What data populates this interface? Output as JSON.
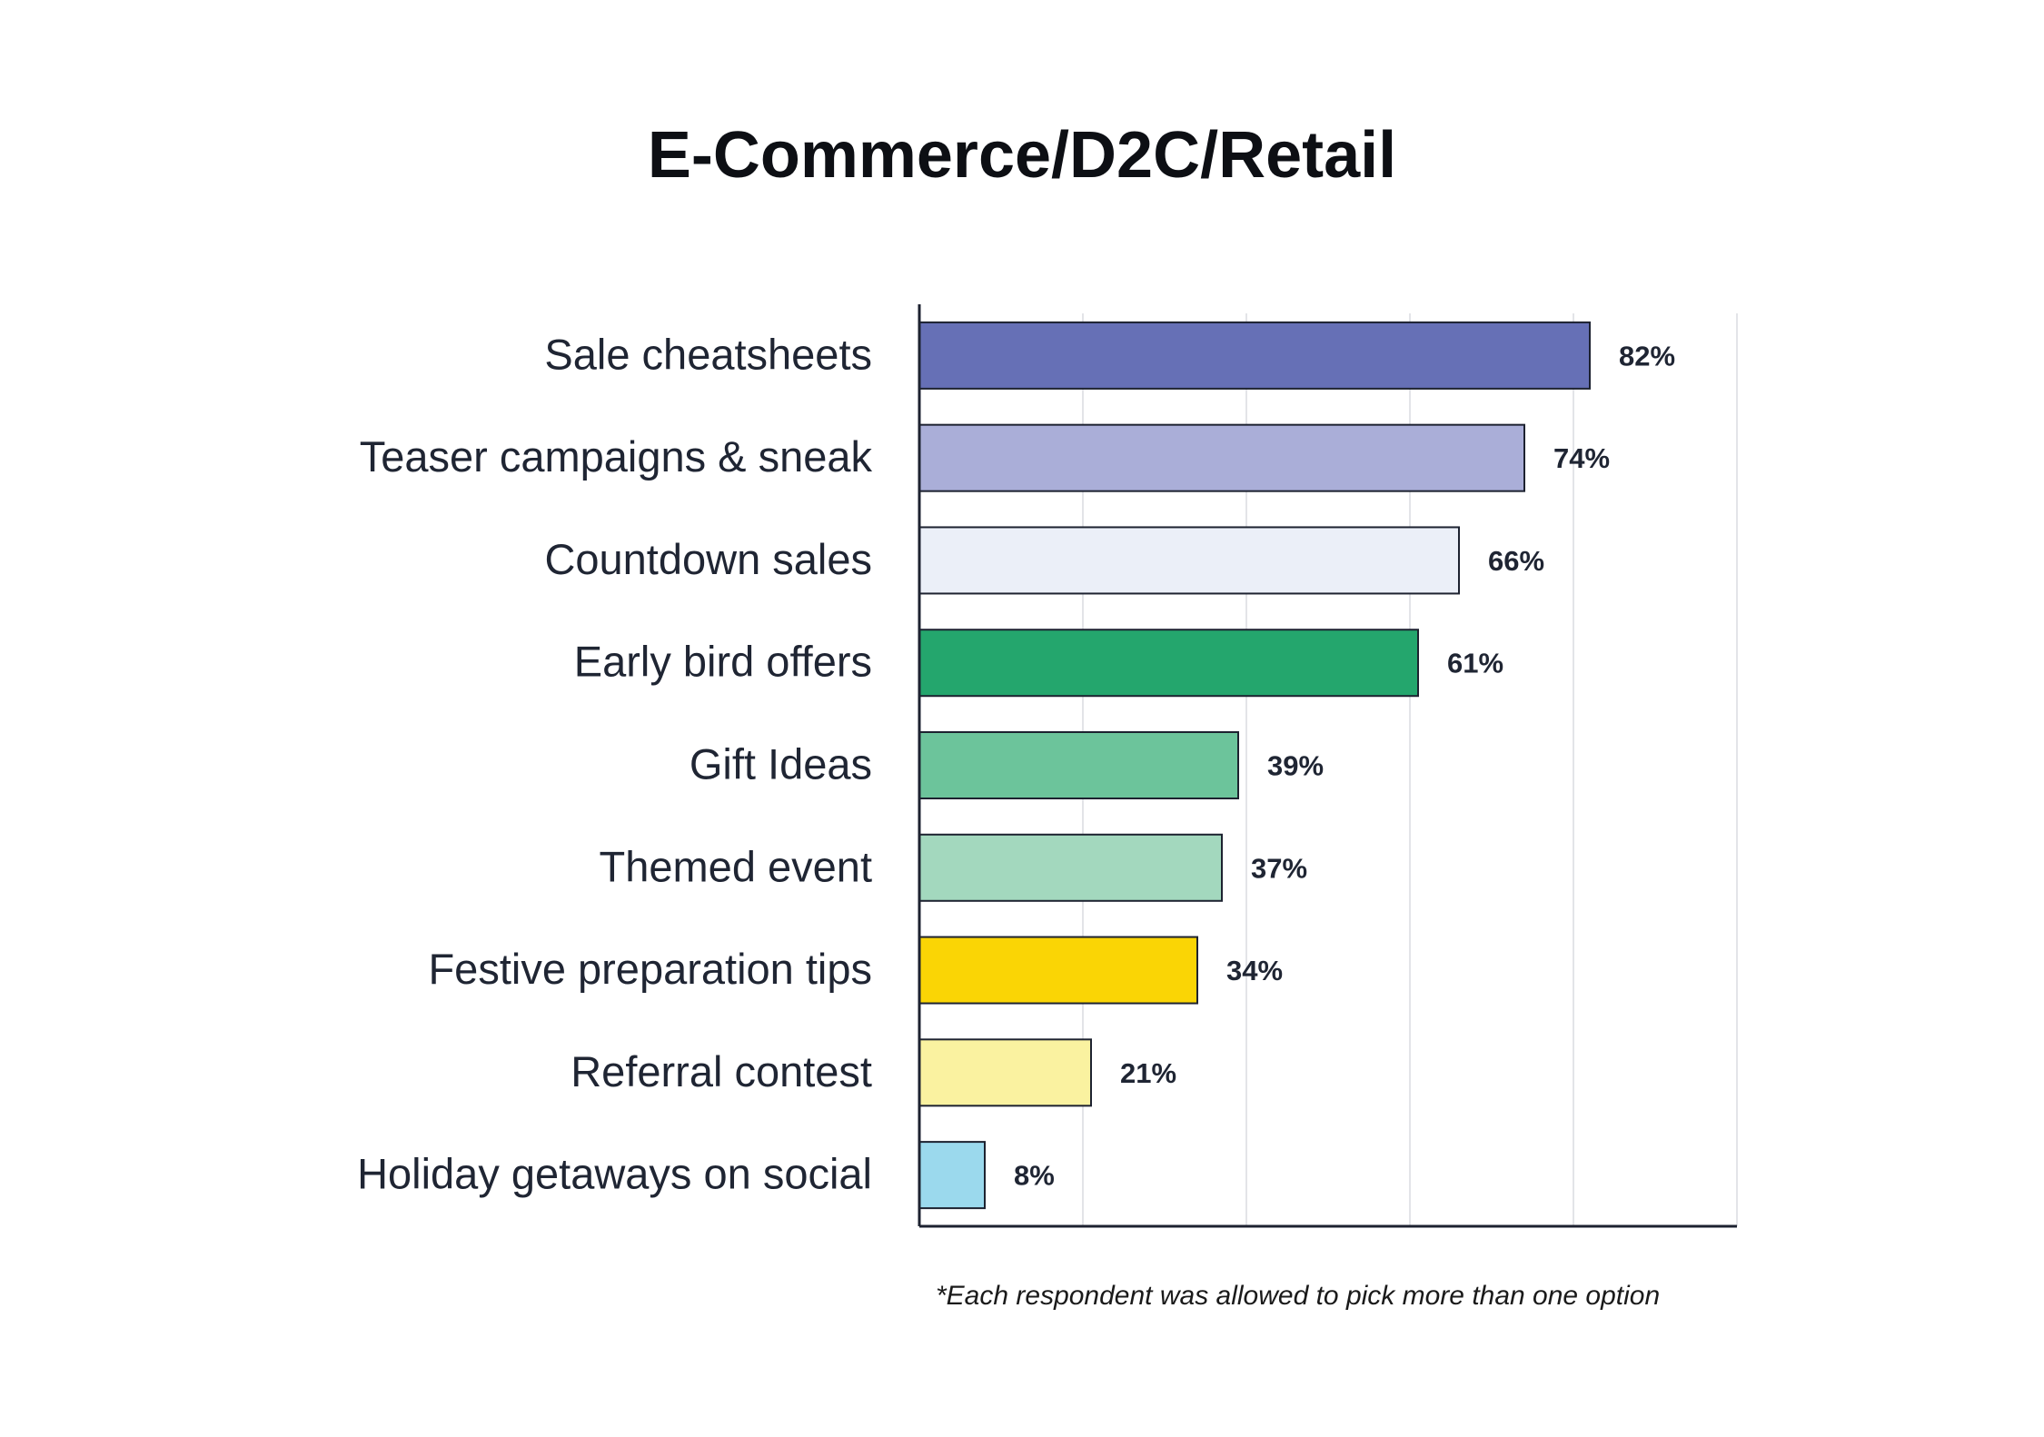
{
  "chart_data": {
    "type": "bar",
    "orientation": "horizontal",
    "title": "E-Commerce/D2C/Retail",
    "xlabel": "",
    "ylabel": "",
    "xlim": [
      0,
      100
    ],
    "grid": true,
    "legend": "none",
    "value_suffix": "%",
    "categories": [
      "Sale cheatsheets",
      "Teaser campaigns & sneak",
      "Countdown sales",
      "Early bird offers",
      "Gift Ideas",
      "Themed event",
      "Festive preparation tips",
      "Referral contest",
      "Holiday getaways on social"
    ],
    "values": [
      82,
      74,
      66,
      61,
      39,
      37,
      34,
      21,
      8
    ],
    "data_labels": [
      "82%",
      "74%",
      "66%",
      "61%",
      "39%",
      "37%",
      "34%",
      "21%",
      "8%"
    ],
    "colors": [
      "#6670b6",
      "#aaaed8",
      "#ebeff8",
      "#24a66d",
      "#6cc49b",
      "#a3d8be",
      "#fad505",
      "#faf2a0",
      "#9bd9ed"
    ],
    "footnote": "*Each respondent was allowed to pick more than one option"
  }
}
